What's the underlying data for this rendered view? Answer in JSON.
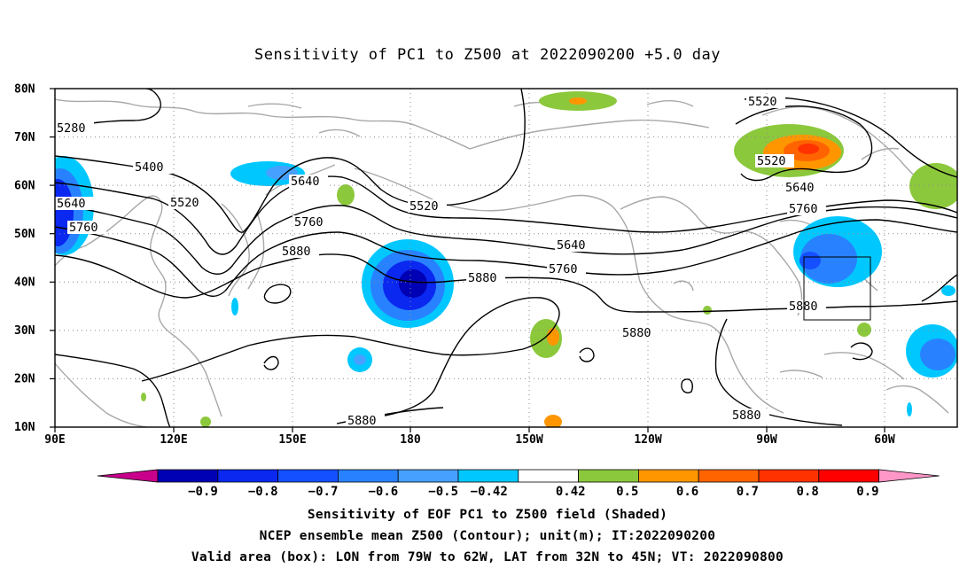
{
  "title": "Sensitivity of PC1 to Z500 at 2022090200 +5.0 day",
  "map": {
    "lat_labels": [
      "80N",
      "70N",
      "60N",
      "50N",
      "40N",
      "30N",
      "20N",
      "10N"
    ],
    "lon_labels": [
      "90E",
      "120E",
      "150E",
      "180",
      "150W",
      "120W",
      "90W",
      "60W"
    ],
    "contour_labels": [
      {
        "text": "5280"
      },
      {
        "text": "5400"
      },
      {
        "text": "5520"
      },
      {
        "text": "5640"
      },
      {
        "text": "5760"
      },
      {
        "text": "5640"
      },
      {
        "text": "5760"
      },
      {
        "text": "5880"
      },
      {
        "text": "5520"
      },
      {
        "text": "5880"
      },
      {
        "text": "5640"
      },
      {
        "text": "5760"
      },
      {
        "text": "5880"
      },
      {
        "text": "5520"
      },
      {
        "text": "5520"
      },
      {
        "text": "5640"
      },
      {
        "text": "5760"
      },
      {
        "text": "5880"
      },
      {
        "text": "5880"
      },
      {
        "text": "5880"
      }
    ],
    "valid_box": {
      "lon_from": "79W",
      "lon_to": "62W",
      "lat_from": "32N",
      "lat_to": "45N"
    }
  },
  "colorbar": {
    "labels": [
      "-0.9",
      "-0.8",
      "-0.7",
      "-0.6",
      "-0.5",
      "-0.42",
      "0.42",
      "0.5",
      "0.6",
      "0.7",
      "0.8",
      "0.9"
    ],
    "colors": [
      "#c8008c",
      "#0000b4",
      "#0a28f0",
      "#1450ff",
      "#2882ff",
      "#46a0ff",
      "#00c8ff",
      "#ffffff",
      "#8cc83c",
      "#ff9600",
      "#ff6400",
      "#ff3200",
      "#ff0000",
      "#ff96c8"
    ]
  },
  "captions": {
    "line1": "Sensitivity of EOF PC1 to Z500 field (Shaded)",
    "line2": "NCEP ensemble mean Z500 (Contour); unit(m); IT:2022090200",
    "line3": "Valid area (box): LON from 79W to 62W, LAT from 32N to 45N; VT: 2022090800"
  }
}
